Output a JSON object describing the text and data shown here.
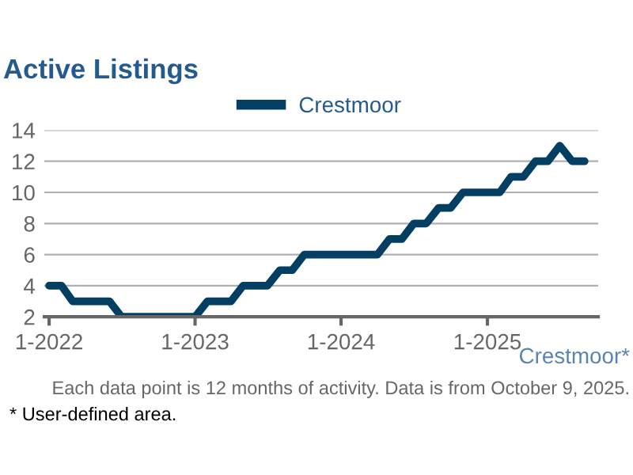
{
  "chart_data": {
    "type": "line",
    "title": "Active Listings",
    "x": [
      "2022-01",
      "2022-02",
      "2022-03",
      "2022-04",
      "2022-05",
      "2022-06",
      "2022-07",
      "2022-08",
      "2022-09",
      "2022-10",
      "2022-11",
      "2022-12",
      "2023-01",
      "2023-02",
      "2023-03",
      "2023-04",
      "2023-05",
      "2023-06",
      "2023-07",
      "2023-08",
      "2023-09",
      "2023-10",
      "2023-11",
      "2023-12",
      "2024-01",
      "2024-02",
      "2024-03",
      "2024-04",
      "2024-05",
      "2024-06",
      "2024-07",
      "2024-08",
      "2024-09",
      "2024-10",
      "2024-11",
      "2024-12",
      "2025-01",
      "2025-02",
      "2025-03",
      "2025-04",
      "2025-05",
      "2025-06",
      "2025-07",
      "2025-08",
      "2025-09"
    ],
    "series": [
      {
        "name": "Crestmoor",
        "color": "#033e63",
        "values": [
          4,
          4,
          3,
          3,
          3,
          3,
          2,
          2,
          2,
          2,
          2,
          2,
          2,
          3,
          3,
          3,
          4,
          4,
          4,
          5,
          5,
          6,
          6,
          6,
          6,
          6,
          6,
          6,
          7,
          7,
          8,
          8,
          9,
          9,
          10,
          10,
          10,
          10,
          11,
          11,
          12,
          12,
          13,
          12,
          12
        ]
      }
    ],
    "xlim": [
      "2021-12-20",
      "2025-10-05"
    ],
    "xticks": [
      {
        "value": "2022-01",
        "label": "1-2022"
      },
      {
        "value": "2023-01",
        "label": "1-2023"
      },
      {
        "value": "2024-01",
        "label": "1-2024"
      },
      {
        "value": "2025-01",
        "label": "1-2025"
      }
    ],
    "ylim": [
      2,
      14
    ],
    "yticks": [
      2,
      4,
      6,
      8,
      10,
      12,
      14
    ],
    "grid": "y",
    "legend": "top",
    "marker": "none",
    "line_style": "solid",
    "annotations": [
      "Crestmoor*",
      "Each data point is 12 months of activity. Data is from October 9, 2025.",
      "* User-defined area."
    ]
  }
}
